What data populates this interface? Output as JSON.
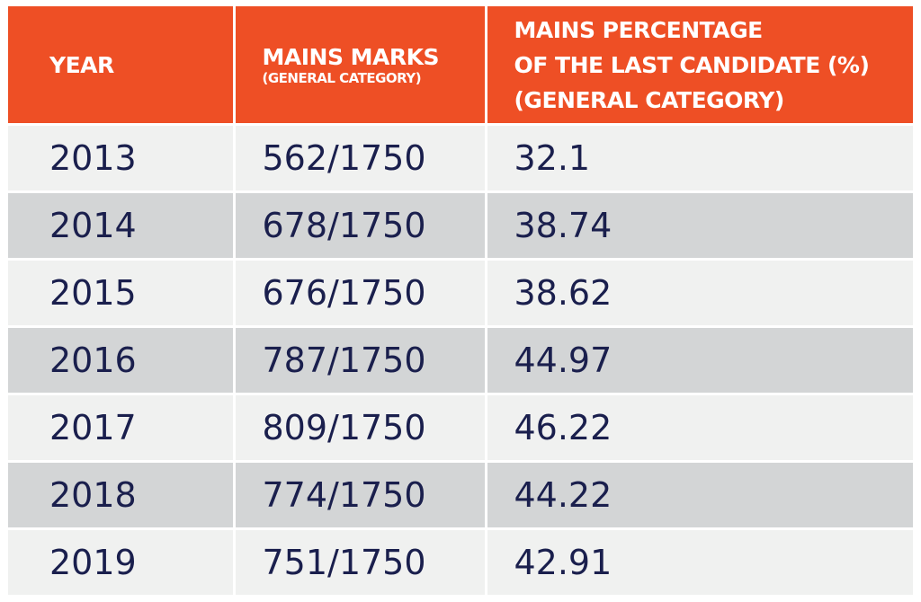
{
  "table": {
    "headers": {
      "year": "YEAR",
      "marks_main": "MAINS MARKS",
      "marks_sub": "(GENERAL CATEGORY)",
      "pct_line1": "MAINS PERCENTAGE",
      "pct_line2": "OF THE LAST CANDIDATE (%)",
      "pct_line3": "(GENERAL CATEGORY)"
    },
    "rows": [
      {
        "year": "2013",
        "marks": "562/1750",
        "pct": "32.1"
      },
      {
        "year": "2014",
        "marks": "678/1750",
        "pct": "38.74"
      },
      {
        "year": "2015",
        "marks": "676/1750",
        "pct": "38.62"
      },
      {
        "year": "2016",
        "marks": "787/1750",
        "pct": "44.97"
      },
      {
        "year": "2017",
        "marks": "809/1750",
        "pct": "46.22"
      },
      {
        "year": "2018",
        "marks": "774/1750",
        "pct": "44.22"
      },
      {
        "year": "2019",
        "marks": "751/1750",
        "pct": "42.91"
      }
    ]
  },
  "colors": {
    "header_bg": "#EE4F25",
    "header_text": "#FFFFFF",
    "row_light": "#F0F1F0",
    "row_dark": "#D3D5D6",
    "cell_text": "#1A1F4D"
  }
}
